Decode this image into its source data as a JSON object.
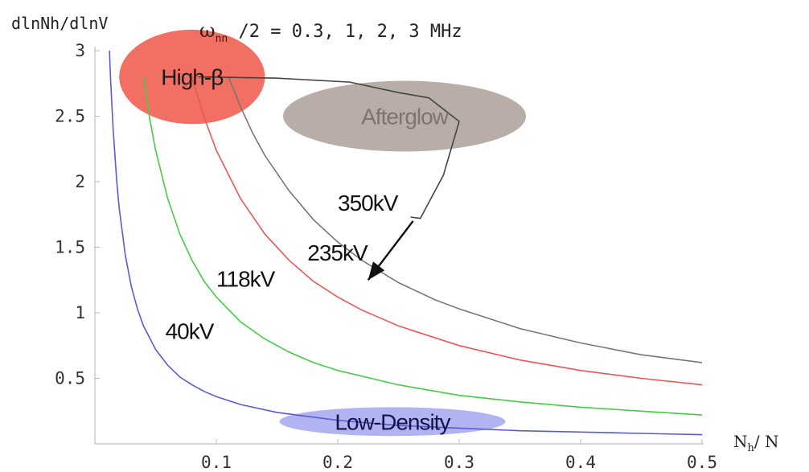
{
  "chart_data": {
    "type": "line",
    "title_parts": {
      "omega": "ω",
      "sub": "nn",
      "rest": " /2 = 0.3, 1, 2, 3 MHz"
    },
    "ylabel": "dlnNh/dlnV",
    "xlabel_parts": {
      "main": "N",
      "sub": "h",
      "rest": "/ N"
    },
    "xlim": [
      0,
      0.5
    ],
    "ylim": [
      0,
      3
    ],
    "xticks": [
      "0.1",
      "0.2",
      "0.3",
      "0.4",
      "0.5"
    ],
    "xtick_values": [
      0.1,
      0.2,
      0.3,
      0.4,
      0.5
    ],
    "yticks": [
      "0.5",
      "1",
      "1.5",
      "2",
      "2.5",
      "3"
    ],
    "ytick_values": [
      0.5,
      1,
      1.5,
      2,
      2.5,
      3
    ],
    "grid": false,
    "series": [
      {
        "name": "40kV",
        "color": "#5a5ad8",
        "x": [
          0.012,
          0.013,
          0.015,
          0.018,
          0.02,
          0.025,
          0.03,
          0.035,
          0.04,
          0.05,
          0.06,
          0.07,
          0.08,
          0.09,
          0.1,
          0.12,
          0.15,
          0.2,
          0.25,
          0.3,
          0.35,
          0.4,
          0.45,
          0.5
        ],
        "y": [
          3.0,
          2.77,
          2.4,
          2.0,
          1.8,
          1.44,
          1.2,
          1.03,
          0.9,
          0.72,
          0.6,
          0.51,
          0.45,
          0.4,
          0.36,
          0.3,
          0.24,
          0.18,
          0.14,
          0.12,
          0.1,
          0.09,
          0.08,
          0.07
        ]
      },
      {
        "name": "118kV",
        "color": "#44cc44",
        "x": [
          0.04,
          0.045,
          0.05,
          0.06,
          0.07,
          0.08,
          0.09,
          0.1,
          0.12,
          0.14,
          0.16,
          0.18,
          0.2,
          0.25,
          0.3,
          0.35,
          0.4,
          0.45,
          0.5
        ],
        "y": [
          2.8,
          2.49,
          2.24,
          1.87,
          1.6,
          1.4,
          1.24,
          1.12,
          0.93,
          0.8,
          0.7,
          0.62,
          0.56,
          0.45,
          0.37,
          0.32,
          0.28,
          0.25,
          0.22
        ]
      },
      {
        "name": "235kV",
        "color": "#ee5555",
        "x": [
          0.08,
          0.085,
          0.09,
          0.1,
          0.12,
          0.14,
          0.16,
          0.18,
          0.2,
          0.22,
          0.25,
          0.3,
          0.35,
          0.4,
          0.45,
          0.5
        ],
        "y": [
          2.8,
          2.64,
          2.49,
          2.24,
          1.87,
          1.6,
          1.4,
          1.24,
          1.12,
          1.02,
          0.9,
          0.75,
          0.64,
          0.56,
          0.5,
          0.45
        ]
      },
      {
        "name": "350kV",
        "color": "#777777",
        "x": [
          0.11,
          0.12,
          0.13,
          0.14,
          0.16,
          0.18,
          0.2,
          0.22,
          0.25,
          0.28,
          0.3,
          0.35,
          0.4,
          0.45,
          0.5
        ],
        "y": [
          2.8,
          2.57,
          2.37,
          2.2,
          1.93,
          1.71,
          1.54,
          1.4,
          1.23,
          1.1,
          1.03,
          0.88,
          0.77,
          0.68,
          0.62
        ]
      }
    ],
    "series_label_pos": [
      {
        "x": 0.058,
        "y": 0.8
      },
      {
        "x": 0.1,
        "y": 1.2
      },
      {
        "x": 0.175,
        "y": 1.4
      },
      {
        "x": 0.2,
        "y": 1.78
      }
    ],
    "regions": [
      {
        "label": "High-β",
        "cx": 0.08,
        "cy": 2.8,
        "rx": 0.06,
        "ry": 0.36,
        "fill": "#ee4c3c",
        "opacity": 0.8,
        "text_color": "#1a1a1a"
      },
      {
        "label": "Afterglow",
        "cx": 0.255,
        "cy": 2.5,
        "rx": 0.1,
        "ry": 0.27,
        "fill": "#a89892",
        "opacity": 0.8,
        "text_color": "#7d7470"
      },
      {
        "label": "Low-Density",
        "cx": 0.245,
        "cy": 0.17,
        "rx": 0.093,
        "ry": 0.11,
        "fill": "#a4a6f0",
        "opacity": 0.85,
        "text_color": "#15154a"
      }
    ],
    "arrow_loop": [
      {
        "x": 0.085,
        "y": 2.8
      },
      {
        "x": 0.15,
        "y": 2.79
      },
      {
        "x": 0.21,
        "y": 2.76
      },
      {
        "x": 0.25,
        "y": 2.68
      },
      {
        "x": 0.275,
        "y": 2.64
      },
      {
        "x": 0.3,
        "y": 2.46
      },
      {
        "x": 0.287,
        "y": 2.05
      },
      {
        "x": 0.268,
        "y": 1.72
      },
      {
        "x": 0.26,
        "y": 1.73
      }
    ],
    "arrow_main": {
      "from": {
        "x": 0.262,
        "y": 1.7
      },
      "to": {
        "x": 0.225,
        "y": 1.25
      }
    }
  }
}
